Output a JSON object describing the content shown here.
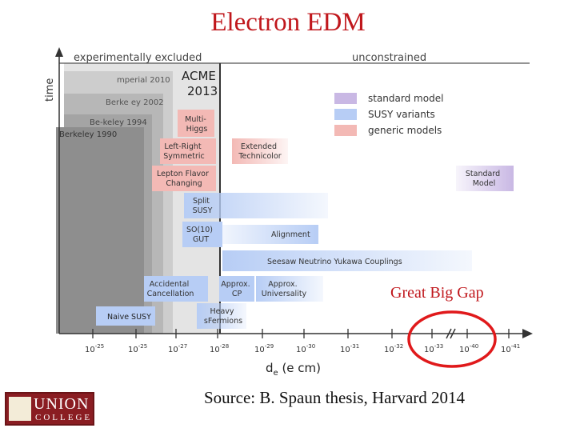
{
  "slide": {
    "title": "Electron EDM",
    "source": "Source: B. Spaun thesis, Harvard 2014",
    "annotation": "Great Big Gap"
  },
  "logo": {
    "line1": "UNION",
    "line2": "COLLEGE"
  },
  "colors": {
    "title": "#c0171c",
    "standard_model": "#c9b8e4",
    "susy": "#b7cdf5",
    "generic": "#f3b9b5",
    "excluded_dark": "#8a8a8a",
    "highlight_circle": "#e0191b"
  },
  "diagram": {
    "header_left": "experimentally excluded",
    "header_right": "unconstrained",
    "y_axis": "time",
    "x_label": "d",
    "x_label_sub": "e",
    "x_label_unit": " (e cm)",
    "ticks": [
      {
        "base": "10",
        "exp": "-25"
      },
      {
        "base": "10",
        "exp": "-25"
      },
      {
        "base": "10",
        "exp": "-27"
      },
      {
        "base": "10",
        "exp": "-28"
      },
      {
        "base": "10",
        "exp": "-29"
      },
      {
        "base": "10",
        "exp": "-30"
      },
      {
        "base": "10",
        "exp": "-31"
      },
      {
        "base": "10",
        "exp": "-32"
      },
      {
        "base": "10",
        "exp": "-33"
      },
      {
        "base": "10",
        "exp": "-40"
      },
      {
        "base": "10",
        "exp": "-41"
      }
    ],
    "experiments": {
      "acme1": "ACME",
      "acme2": "2013",
      "imperial": "mperial 2010",
      "berkeley2002": "Berke ey 2002",
      "berkeley1994": "Be-keley 1994",
      "berkeley1990": "Berkeley 1990"
    },
    "legend": [
      "standard model",
      "SUSY variants",
      "generic models"
    ],
    "models": {
      "multi_higgs": [
        "Multi-",
        "Higgs"
      ],
      "lr_symmetric": [
        "Left-Right",
        "Symmetric"
      ],
      "lepton_flavor": [
        "Lepton Flavor",
        "Changing"
      ],
      "ext_technicolor": [
        "Extended",
        "Technicolor"
      ],
      "standard_model": [
        "Standard",
        "Model"
      ],
      "split_susy": [
        "Split",
        "SUSY"
      ],
      "so10_gut": [
        "SO(10)",
        "GUT"
      ],
      "alignment": [
        "Alignment"
      ],
      "seesaw": [
        "Seesaw Neutrino Yukawa Couplings"
      ],
      "accidental": [
        "Accidental",
        "Cancellation"
      ],
      "approx_cp": [
        "Approx.",
        "CP"
      ],
      "approx_univ": [
        "Approx.",
        "Universality"
      ],
      "naive_susy": [
        "Naive SUSY"
      ],
      "heavy_sfermions": [
        "Heavy",
        "sFermions"
      ]
    }
  }
}
